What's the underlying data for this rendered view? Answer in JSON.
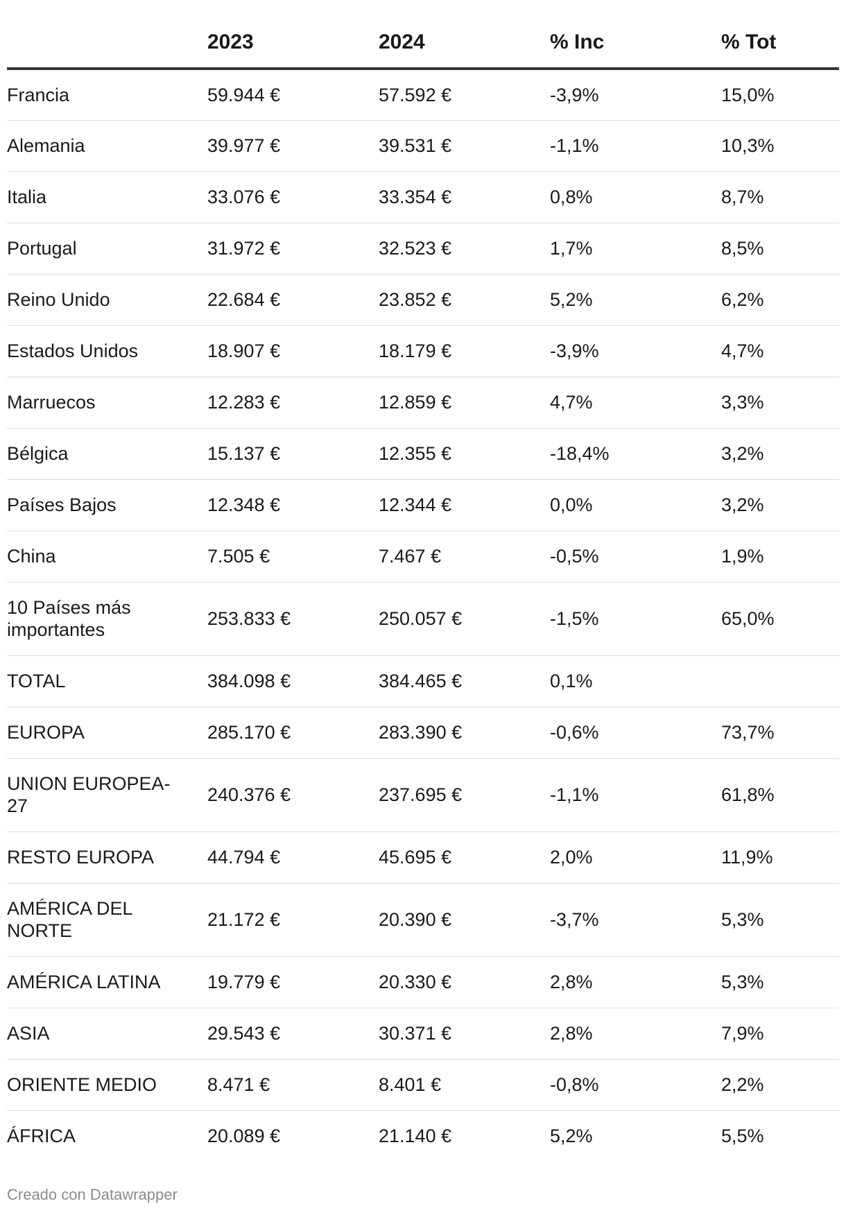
{
  "table": {
    "headers": [
      "",
      "2023",
      "2024",
      "% Inc",
      "% Tot"
    ],
    "rows": [
      {
        "name": "Francia",
        "y2023": "59.944 €",
        "y2024": "57.592 €",
        "inc": "-3,9%",
        "tot": "15,0%"
      },
      {
        "name": "Alemania",
        "y2023": "39.977 €",
        "y2024": "39.531 €",
        "inc": "-1,1%",
        "tot": "10,3%"
      },
      {
        "name": "Italia",
        "y2023": "33.076 €",
        "y2024": "33.354 €",
        "inc": "0,8%",
        "tot": "8,7%"
      },
      {
        "name": "Portugal",
        "y2023": "31.972 €",
        "y2024": "32.523 €",
        "inc": "1,7%",
        "tot": "8,5%"
      },
      {
        "name": "Reino Unido",
        "y2023": "22.684 €",
        "y2024": "23.852 €",
        "inc": "5,2%",
        "tot": "6,2%"
      },
      {
        "name": "Estados Unidos",
        "y2023": "18.907 €",
        "y2024": "18.179 €",
        "inc": "-3,9%",
        "tot": "4,7%"
      },
      {
        "name": "Marruecos",
        "y2023": "12.283 €",
        "y2024": "12.859 €",
        "inc": "4,7%",
        "tot": "3,3%"
      },
      {
        "name": "Bélgica",
        "y2023": "15.137 €",
        "y2024": "12.355 €",
        "inc": "-18,4%",
        "tot": "3,2%"
      },
      {
        "name": "Países Bajos",
        "y2023": "12.348 €",
        "y2024": "12.344 €",
        "inc": "0,0%",
        "tot": "3,2%"
      },
      {
        "name": "China",
        "y2023": "7.505 €",
        "y2024": "7.467 €",
        "inc": "-0,5%",
        "tot": "1,9%"
      },
      {
        "name": "10 Países más importantes",
        "y2023": "253.833 €",
        "y2024": "250.057 €",
        "inc": "-1,5%",
        "tot": "65,0%"
      },
      {
        "name": "TOTAL",
        "y2023": "384.098 €",
        "y2024": "384.465 €",
        "inc": "0,1%",
        "tot": ""
      },
      {
        "name": "EUROPA",
        "y2023": "285.170 €",
        "y2024": "283.390 €",
        "inc": "-0,6%",
        "tot": "73,7%"
      },
      {
        "name": "UNION EUROPEA-27",
        "y2023": "240.376 €",
        "y2024": "237.695 €",
        "inc": "-1,1%",
        "tot": "61,8%"
      },
      {
        "name": "RESTO EUROPA",
        "y2023": "44.794 €",
        "y2024": "45.695 €",
        "inc": "2,0%",
        "tot": "11,9%"
      },
      {
        "name": "AMÉRICA DEL NORTE",
        "y2023": "21.172 €",
        "y2024": "20.390 €",
        "inc": "-3,7%",
        "tot": "5,3%"
      },
      {
        "name": "AMÉRICA LATINA",
        "y2023": "19.779 €",
        "y2024": "20.330 €",
        "inc": "2,8%",
        "tot": "5,3%"
      },
      {
        "name": "ASIA",
        "y2023": "29.543 €",
        "y2024": "30.371 €",
        "inc": "2,8%",
        "tot": "7,9%"
      },
      {
        "name": "ORIENTE MEDIO",
        "y2023": "8.471 €",
        "y2024": "8.401 €",
        "inc": "-0,8%",
        "tot": "2,2%"
      },
      {
        "name": "ÁFRICA",
        "y2023": "20.089 €",
        "y2024": "21.140 €",
        "inc": "5,2%",
        "tot": "5,5%"
      }
    ]
  },
  "footer": {
    "credit": "Creado con Datawrapper"
  }
}
